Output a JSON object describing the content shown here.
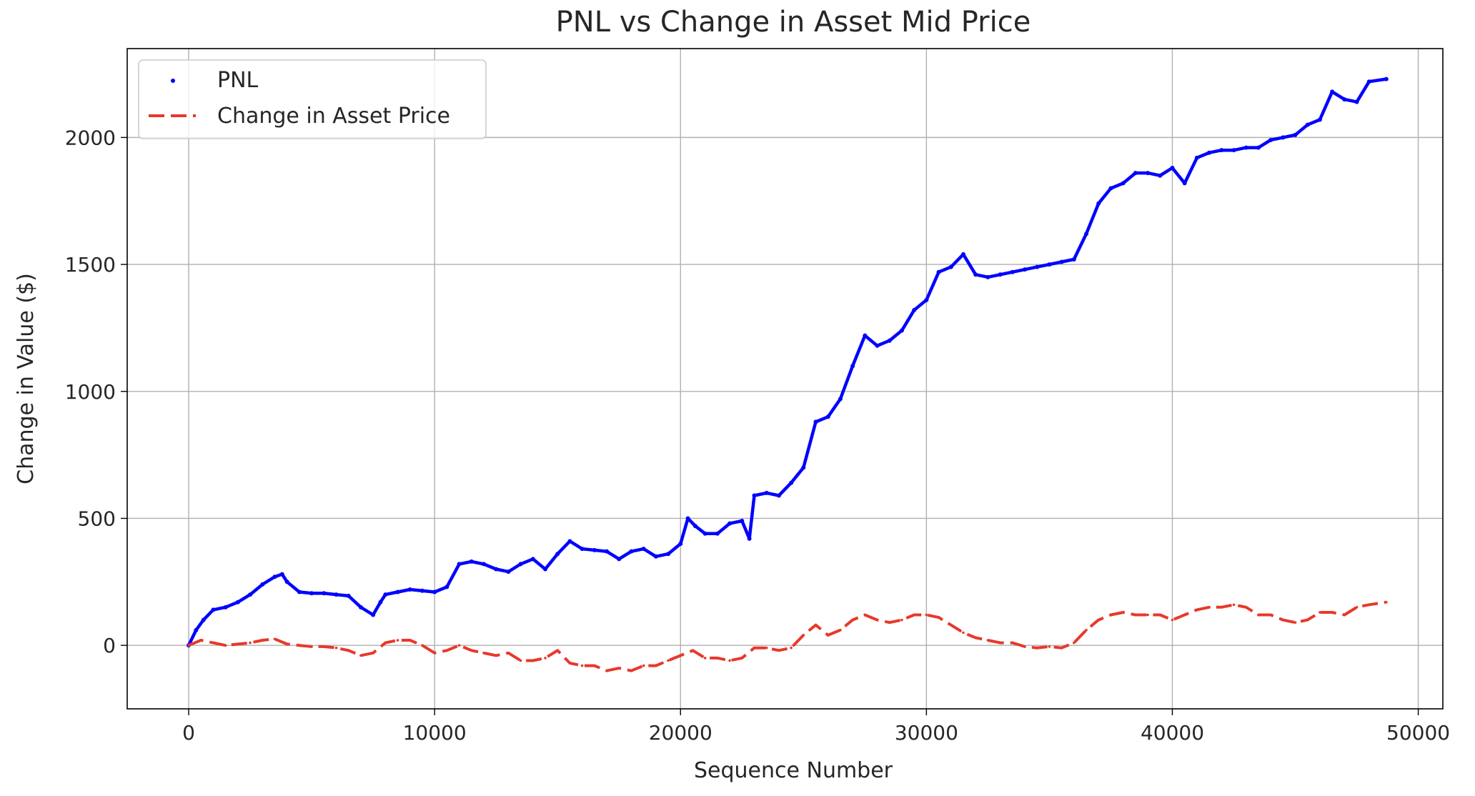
{
  "chart_data": {
    "type": "scatter",
    "title": "PNL vs Change in Asset Mid Price",
    "xlabel": "Sequence Number",
    "ylabel": "Change in Value ($)",
    "xlim": [
      -2500,
      51000
    ],
    "ylim": [
      -250,
      2350
    ],
    "xticks": [
      0,
      10000,
      20000,
      30000,
      40000,
      50000
    ],
    "yticks": [
      0,
      500,
      1000,
      1500,
      2000
    ],
    "grid": true,
    "legend_position": "top-left",
    "series": [
      {
        "name": "PNL",
        "mark": "points",
        "color": "#0000ff",
        "x": [
          0,
          300,
          600,
          1000,
          1500,
          2000,
          2500,
          3000,
          3500,
          3800,
          4000,
          4500,
          5000,
          5500,
          6000,
          6500,
          7000,
          7500,
          7800,
          8000,
          8500,
          9000,
          9500,
          10000,
          10500,
          11000,
          11500,
          12000,
          12500,
          13000,
          13500,
          14000,
          14500,
          15000,
          15500,
          16000,
          16500,
          17000,
          17500,
          18000,
          18500,
          19000,
          19500,
          20000,
          20300,
          20600,
          21000,
          21500,
          22000,
          22500,
          22800,
          23000,
          23500,
          24000,
          24500,
          25000,
          25500,
          26000,
          26500,
          27000,
          27500,
          28000,
          28500,
          29000,
          29500,
          30000,
          30500,
          31000,
          31500,
          32000,
          32500,
          33000,
          33500,
          34000,
          34500,
          35000,
          35500,
          36000,
          36500,
          37000,
          37500,
          38000,
          38500,
          39000,
          39500,
          40000,
          40500,
          41000,
          41500,
          42000,
          42500,
          43000,
          43500,
          44000,
          44500,
          45000,
          45500,
          46000,
          46500,
          47000,
          47500,
          48000,
          48700
        ],
        "y": [
          0,
          60,
          100,
          140,
          150,
          170,
          200,
          240,
          270,
          280,
          250,
          210,
          205,
          205,
          200,
          195,
          150,
          120,
          170,
          200,
          210,
          220,
          215,
          210,
          230,
          320,
          330,
          320,
          300,
          290,
          320,
          340,
          300,
          360,
          410,
          380,
          375,
          370,
          340,
          370,
          380,
          350,
          360,
          400,
          500,
          470,
          440,
          440,
          480,
          490,
          420,
          590,
          600,
          590,
          640,
          700,
          880,
          900,
          970,
          1100,
          1220,
          1180,
          1200,
          1240,
          1320,
          1360,
          1470,
          1490,
          1540,
          1460,
          1450,
          1460,
          1470,
          1480,
          1490,
          1500,
          1510,
          1520,
          1620,
          1740,
          1800,
          1820,
          1860,
          1860,
          1850,
          1880,
          1820,
          1920,
          1940,
          1950,
          1950,
          1960,
          1960,
          1990,
          2000,
          2010,
          2050,
          2070,
          2180,
          2150,
          2140,
          2220,
          2230
        ]
      },
      {
        "name": "Change in Asset Price",
        "mark": "dashed-line",
        "color": "#e8382b",
        "x": [
          0,
          500,
          1000,
          1500,
          2000,
          2500,
          3000,
          3500,
          4000,
          4500,
          5000,
          5500,
          6000,
          6500,
          7000,
          7500,
          8000,
          8500,
          9000,
          9500,
          10000,
          10500,
          11000,
          11500,
          12000,
          12500,
          13000,
          13500,
          14000,
          14500,
          15000,
          15500,
          16000,
          16500,
          17000,
          17500,
          18000,
          18500,
          19000,
          19500,
          20000,
          20500,
          21000,
          21500,
          22000,
          22500,
          23000,
          23500,
          24000,
          24500,
          25000,
          25500,
          26000,
          26500,
          27000,
          27500,
          28000,
          28500,
          29000,
          29500,
          30000,
          30500,
          31000,
          31500,
          32000,
          32500,
          33000,
          33500,
          34000,
          34500,
          35000,
          35500,
          36000,
          36500,
          37000,
          37500,
          38000,
          38500,
          39000,
          39500,
          40000,
          40500,
          41000,
          41500,
          42000,
          42500,
          43000,
          43500,
          44000,
          44500,
          45000,
          45500,
          46000,
          46500,
          47000,
          47500,
          48000,
          48700
        ],
        "y": [
          0,
          20,
          10,
          0,
          5,
          10,
          20,
          25,
          5,
          0,
          -5,
          -5,
          -10,
          -20,
          -40,
          -30,
          10,
          20,
          20,
          0,
          -30,
          -20,
          0,
          -20,
          -30,
          -40,
          -30,
          -60,
          -60,
          -50,
          -20,
          -70,
          -80,
          -80,
          -100,
          -90,
          -100,
          -80,
          -80,
          -60,
          -40,
          -20,
          -50,
          -50,
          -60,
          -50,
          -10,
          -10,
          -20,
          -10,
          40,
          80,
          40,
          60,
          100,
          120,
          100,
          90,
          100,
          120,
          120,
          110,
          80,
          50,
          30,
          20,
          10,
          10,
          -5,
          -10,
          -5,
          -10,
          10,
          60,
          100,
          120,
          130,
          120,
          120,
          120,
          100,
          120,
          140,
          150,
          150,
          160,
          150,
          120,
          120,
          100,
          90,
          100,
          130,
          130,
          120,
          150,
          160,
          170
        ]
      }
    ]
  }
}
